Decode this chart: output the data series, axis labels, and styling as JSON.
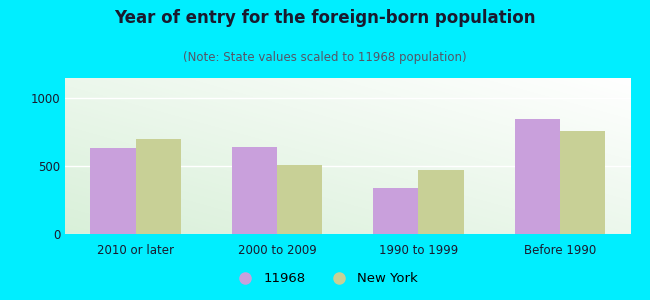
{
  "title": "Year of entry for the foreign-born population",
  "subtitle": "(Note: State values scaled to 11968 population)",
  "categories": [
    "2010 or later",
    "2000 to 2009",
    "1990 to 1999",
    "Before 1990"
  ],
  "values_11968": [
    635,
    645,
    340,
    850
  ],
  "values_ny": [
    700,
    505,
    475,
    760
  ],
  "color_11968": "#c9a0dc",
  "color_ny": "#c8d096",
  "background_outer": "#00eeff",
  "ylim": [
    0,
    1150
  ],
  "yticks": [
    0,
    500,
    1000
  ],
  "bar_width": 0.32,
  "legend_labels": [
    "11968",
    "New York"
  ],
  "title_fontsize": 12,
  "subtitle_fontsize": 8.5,
  "tick_fontsize": 8.5,
  "legend_fontsize": 9.5,
  "title_color": "#1a1a2e",
  "subtitle_color": "#555566",
  "tick_color": "#1a1a2e"
}
